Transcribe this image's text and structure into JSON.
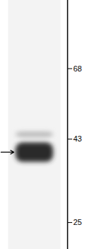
{
  "chart_data": {
    "type": "blot",
    "log": "y",
    "ylim": [
      21,
      106
    ],
    "yticks": [
      68,
      43,
      25
    ],
    "tick_labels": "y",
    "bands": [
      {
        "kda_low": 37,
        "kda_high": 42,
        "color": "#2a2a2a"
      },
      {
        "kda_low": 43.5,
        "kda_high": 45,
        "color": "#b8b8b8"
      }
    ],
    "arrow_kda": 39.5
  }
}
